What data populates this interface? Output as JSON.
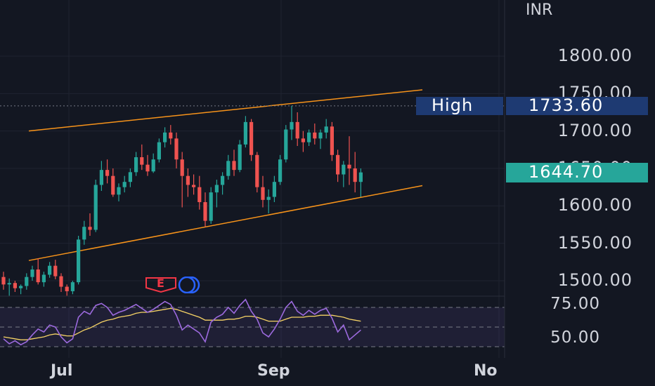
{
  "chart_data": [
    {
      "type": "candlestick",
      "currency_label": "INR",
      "y_ticks": [
        "1800.00",
        "1750.00",
        "1700.00",
        "1650.00",
        "1600.00",
        "1550.00",
        "1500.00"
      ],
      "y_range": [
        1480,
        1830
      ],
      "x_ticks": [
        "Jul",
        "Sep",
        "No"
      ],
      "high_marker": {
        "label": "High",
        "value": "1733.60",
        "price": 1733.6
      },
      "last_price": {
        "value": "1644.70",
        "price": 1644.7
      },
      "earnings_badge": "E",
      "channel": {
        "upper": [
          [
            0,
            1700
          ],
          [
            80,
            1755
          ]
        ],
        "lower": [
          [
            0,
            1527
          ],
          [
            80,
            1627
          ]
        ]
      },
      "candles": [
        [
          1505,
          1512,
          1488,
          1495
        ],
        [
          1495,
          1503,
          1480,
          1497
        ],
        [
          1497,
          1500,
          1485,
          1490
        ],
        [
          1490,
          1495,
          1482,
          1493
        ],
        [
          1493,
          1510,
          1488,
          1505
        ],
        [
          1505,
          1520,
          1500,
          1515
        ],
        [
          1515,
          1530,
          1495,
          1498
        ],
        [
          1498,
          1512,
          1492,
          1508
        ],
        [
          1508,
          1525,
          1504,
          1520
        ],
        [
          1520,
          1528,
          1502,
          1506
        ],
        [
          1506,
          1510,
          1485,
          1492
        ],
        [
          1492,
          1495,
          1480,
          1486
        ],
        [
          1486,
          1500,
          1482,
          1498
        ],
        [
          1498,
          1560,
          1495,
          1555
        ],
        [
          1555,
          1580,
          1548,
          1572
        ],
        [
          1572,
          1590,
          1560,
          1568
        ],
        [
          1568,
          1635,
          1565,
          1628
        ],
        [
          1628,
          1660,
          1620,
          1648
        ],
        [
          1648,
          1662,
          1630,
          1640
        ],
        [
          1640,
          1650,
          1612,
          1615
        ],
        [
          1615,
          1630,
          1606,
          1625
        ],
        [
          1625,
          1640,
          1618,
          1632
        ],
        [
          1632,
          1650,
          1625,
          1645
        ],
        [
          1645,
          1672,
          1640,
          1665
        ],
        [
          1665,
          1682,
          1648,
          1655
        ],
        [
          1655,
          1668,
          1640,
          1646
        ],
        [
          1646,
          1670,
          1644,
          1662
        ],
        [
          1662,
          1690,
          1658,
          1685
        ],
        [
          1685,
          1705,
          1678,
          1698
        ],
        [
          1698,
          1708,
          1682,
          1690
        ],
        [
          1690,
          1698,
          1650,
          1662
        ],
        [
          1662,
          1672,
          1598,
          1640
        ],
        [
          1640,
          1650,
          1612,
          1628
        ],
        [
          1628,
          1642,
          1615,
          1625
        ],
        [
          1625,
          1640,
          1595,
          1605
        ],
        [
          1605,
          1618,
          1572,
          1580
        ],
        [
          1580,
          1625,
          1576,
          1618
        ],
        [
          1618,
          1635,
          1598,
          1628
        ],
        [
          1628,
          1645,
          1615,
          1640
        ],
        [
          1640,
          1668,
          1635,
          1660
        ],
        [
          1660,
          1675,
          1640,
          1648
        ],
        [
          1648,
          1688,
          1645,
          1682
        ],
        [
          1682,
          1720,
          1678,
          1712
        ],
        [
          1712,
          1716,
          1660,
          1668
        ],
        [
          1668,
          1672,
          1618,
          1625
        ],
        [
          1625,
          1640,
          1598,
          1608
        ],
        [
          1608,
          1622,
          1590,
          1612
        ],
        [
          1612,
          1640,
          1605,
          1632
        ],
        [
          1632,
          1668,
          1628,
          1662
        ],
        [
          1662,
          1708,
          1658,
          1702
        ],
        [
          1702,
          1733.6,
          1688,
          1712
        ],
        [
          1712,
          1725,
          1680,
          1690
        ],
        [
          1690,
          1700,
          1672,
          1685
        ],
        [
          1685,
          1702,
          1680,
          1698
        ],
        [
          1698,
          1710,
          1682,
          1690
        ],
        [
          1690,
          1702,
          1676,
          1698
        ],
        [
          1698,
          1716,
          1690,
          1706
        ],
        [
          1706,
          1712,
          1660,
          1668
        ],
        [
          1668,
          1675,
          1632,
          1642
        ],
        [
          1642,
          1660,
          1625,
          1655
        ],
        [
          1655,
          1693,
          1628,
          1650
        ],
        [
          1650,
          1672,
          1618,
          1632
        ],
        [
          1632,
          1650,
          1612,
          1644.7
        ]
      ],
      "rsi": {
        "upper": 70,
        "lower": 30,
        "range": [
          20,
          80
        ],
        "y_ticks": [
          "75.00",
          "50.00"
        ],
        "rsi": [
          38,
          33,
          36,
          32,
          35,
          42,
          48,
          45,
          52,
          50,
          40,
          34,
          38,
          60,
          66,
          63,
          72,
          74,
          70,
          62,
          65,
          67,
          70,
          73,
          69,
          65,
          68,
          72,
          76,
          73,
          62,
          47,
          52,
          48,
          44,
          35,
          55,
          60,
          63,
          70,
          64,
          72,
          78,
          66,
          58,
          44,
          40,
          48,
          58,
          70,
          76,
          66,
          62,
          67,
          63,
          67,
          69,
          59,
          45,
          52,
          37,
          42,
          47
        ],
        "ma": [
          40,
          39,
          38,
          37,
          37,
          38,
          39,
          40,
          42,
          43,
          42,
          41,
          41,
          44,
          47,
          49,
          52,
          55,
          57,
          58,
          60,
          61,
          62,
          64,
          65,
          65,
          66,
          67,
          68,
          69,
          68,
          66,
          64,
          62,
          60,
          57,
          57,
          57,
          57,
          58,
          58,
          59,
          61,
          61,
          60,
          58,
          56,
          56,
          56,
          58,
          60,
          60,
          60,
          61,
          61,
          62,
          62,
          62,
          61,
          60,
          58,
          57,
          56
        ]
      }
    }
  ]
}
